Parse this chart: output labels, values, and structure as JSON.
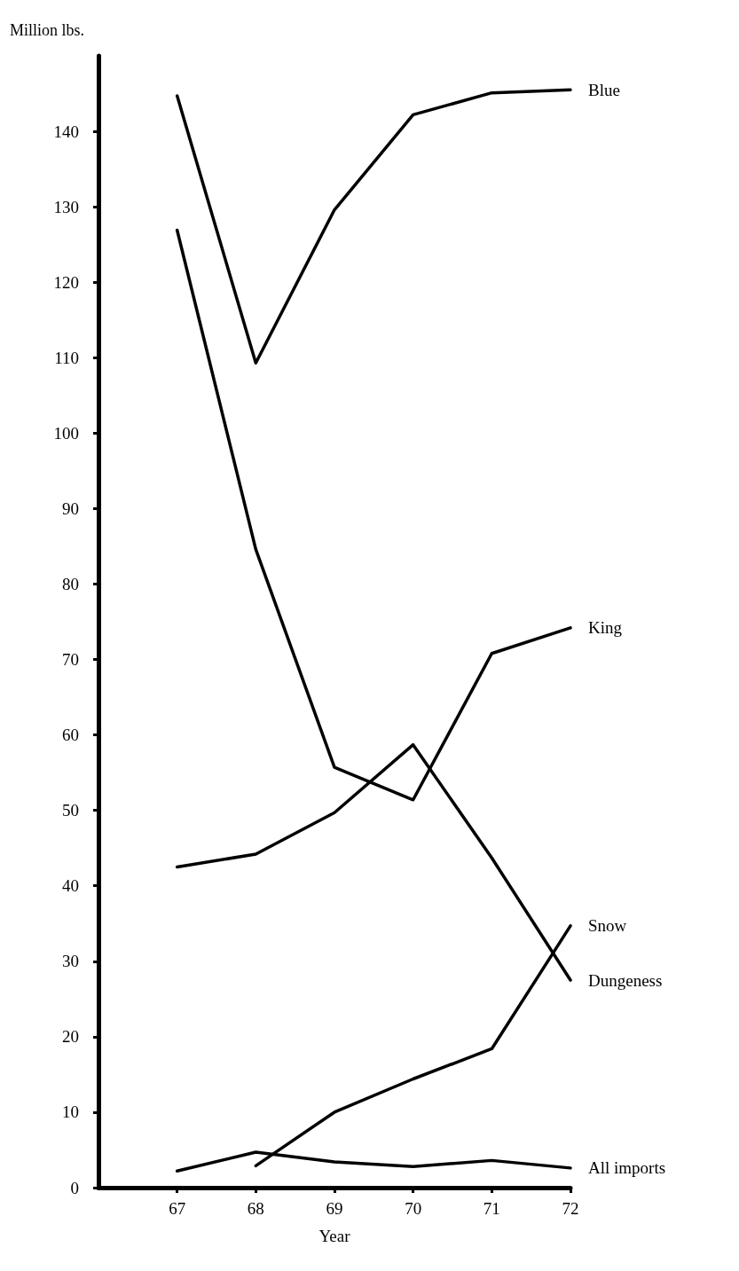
{
  "chart_data": {
    "type": "line",
    "ylabel": "Million lbs.",
    "xlabel": "Year",
    "x": [
      67,
      68,
      69,
      70,
      71,
      72
    ],
    "series": [
      {
        "name": "Blue",
        "color": "#000000",
        "values": [
          144.7,
          109.3,
          129.6,
          142.2,
          145.1,
          145.5
        ]
      },
      {
        "name": "King",
        "color": "#000000",
        "values": [
          126.9,
          84.6,
          55.7,
          51.4,
          70.8,
          74.2
        ]
      },
      {
        "name": "Snow",
        "color": "#000000",
        "values": [
          null,
          2.9,
          10,
          14.4,
          18.4,
          34.7
        ]
      },
      {
        "name": "Dungeness",
        "color": "#000000",
        "values": [
          42.5,
          44.2,
          49.7,
          58.7,
          43.7,
          27.5
        ]
      },
      {
        "name": "All imports",
        "color": "#000000",
        "values": [
          2.2,
          4.7,
          3.4,
          2.8,
          3.6,
          2.6
        ]
      }
    ],
    "xlim": [
      66,
      72
    ],
    "xticks": [
      67,
      68,
      69,
      70,
      71,
      72
    ],
    "ylim": [
      0,
      150
    ],
    "yticks": [
      0,
      10,
      20,
      30,
      40,
      50,
      60,
      70,
      80,
      90,
      100,
      110,
      120,
      130,
      140
    ],
    "grid": false,
    "legend": false,
    "marker": "none",
    "line_style": "solid"
  }
}
